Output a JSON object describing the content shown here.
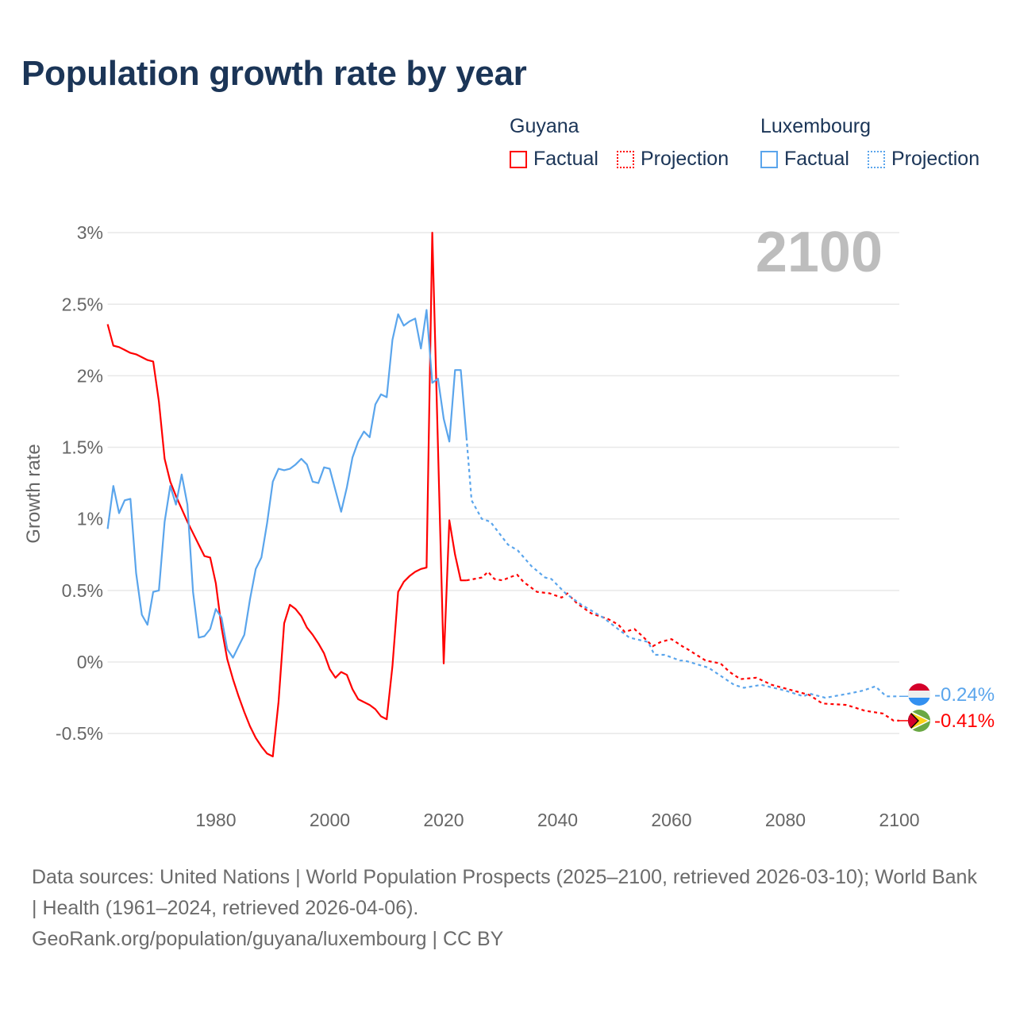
{
  "title": "Population growth rate by year",
  "legend": {
    "groups": [
      {
        "country": "Guyana",
        "color": "#ff0000",
        "factual": "Factual",
        "projection": "Projection"
      },
      {
        "country": "Luxembourg",
        "color": "#5aa5ec",
        "factual": "Factual",
        "projection": "Projection"
      }
    ]
  },
  "year_indicator": "2100",
  "end_labels": {
    "luxembourg": "-0.24%",
    "guyana": "-0.41%"
  },
  "footer": {
    "sources": "Data sources: United Nations | World Population Prospects (2025–2100, retrieved 2026-03-10); World Bank | Health (1961–2024, retrieved 2026-04-06).",
    "credit": "GeoRank.org/population/guyana/luxembourg | CC BY"
  },
  "chart_data": {
    "type": "line",
    "title": "Population growth rate by year",
    "xlabel": "",
    "ylabel": "Growth rate",
    "xlim": [
      1961,
      2100
    ],
    "ylim": [
      -0.9,
      3.0
    ],
    "grid": true,
    "yticks": [
      {
        "v": 3,
        "label": "3%"
      },
      {
        "v": 2.5,
        "label": "2.5%"
      },
      {
        "v": 2,
        "label": "2%"
      },
      {
        "v": 1.5,
        "label": "1.5%"
      },
      {
        "v": 1,
        "label": "1%"
      },
      {
        "v": 0.5,
        "label": "0.5%"
      },
      {
        "v": 0,
        "label": "0%"
      },
      {
        "v": -0.5,
        "label": "-0.5%"
      }
    ],
    "xticks": [
      {
        "v": 1980,
        "label": "1980"
      },
      {
        "v": 2000,
        "label": "2000"
      },
      {
        "v": 2020,
        "label": "2020"
      },
      {
        "v": 2040,
        "label": "2040"
      },
      {
        "v": 2060,
        "label": "2060"
      },
      {
        "v": 2080,
        "label": "2080"
      },
      {
        "v": 2100,
        "label": "2100"
      }
    ],
    "series": [
      {
        "name": "Guyana Factual",
        "country": "guyana",
        "style": "solid",
        "color": "#ff0000",
        "start_year": 1961,
        "values": [
          2.36,
          2.21,
          2.2,
          2.18,
          2.16,
          2.15,
          2.13,
          2.11,
          2.1,
          1.82,
          1.42,
          1.26,
          1.16,
          1.07,
          0.98,
          0.9,
          0.82,
          0.74,
          0.73,
          0.55,
          0.24,
          0.02,
          -0.12,
          -0.24,
          -0.35,
          -0.45,
          -0.53,
          -0.59,
          -0.64,
          -0.66,
          -0.28,
          0.27,
          0.4,
          0.37,
          0.32,
          0.24,
          0.19,
          0.13,
          0.06,
          -0.05,
          -0.11,
          -0.07,
          -0.09,
          -0.19,
          -0.26,
          -0.28,
          -0.3,
          -0.33,
          -0.38,
          -0.4,
          -0.03,
          0.49,
          0.56,
          0.6,
          0.63,
          0.65,
          0.66,
          3.0,
          1.5,
          -0.01,
          0.99,
          0.75,
          0.57,
          0.57
        ]
      },
      {
        "name": "Luxembourg Factual",
        "country": "luxembourg",
        "style": "solid",
        "color": "#5aa5ec",
        "start_year": 1961,
        "values": [
          0.93,
          1.23,
          1.04,
          1.13,
          1.14,
          0.62,
          0.33,
          0.26,
          0.49,
          0.5,
          0.98,
          1.23,
          1.1,
          1.31,
          1.1,
          0.49,
          0.17,
          0.18,
          0.23,
          0.37,
          0.31,
          0.09,
          0.03,
          0.11,
          0.19,
          0.44,
          0.65,
          0.73,
          0.97,
          1.26,
          1.35,
          1.34,
          1.35,
          1.38,
          1.42,
          1.38,
          1.26,
          1.25,
          1.36,
          1.35,
          1.2,
          1.05,
          1.22,
          1.43,
          1.54,
          1.61,
          1.57,
          1.8,
          1.87,
          1.85,
          2.25,
          2.43,
          2.35,
          2.38,
          2.4,
          2.19,
          2.46,
          1.95,
          1.98,
          1.7,
          1.54,
          2.04,
          2.04,
          1.57
        ]
      },
      {
        "name": "Guyana Projection",
        "country": "guyana",
        "style": "dotted",
        "color": "#ff0000",
        "points": [
          [
            2024,
            0.57
          ],
          [
            2026.7,
            0.59
          ],
          [
            2027.8,
            0.63
          ],
          [
            2028.9,
            0.58
          ],
          [
            2030.3,
            0.57
          ],
          [
            2031.5,
            0.59
          ],
          [
            2032.9,
            0.61
          ],
          [
            2034,
            0.56
          ],
          [
            2036.4,
            0.49
          ],
          [
            2038.6,
            0.48
          ],
          [
            2040.7,
            0.45
          ],
          [
            2041.7,
            0.48
          ],
          [
            2043.4,
            0.41
          ],
          [
            2045.9,
            0.34
          ],
          [
            2048.9,
            0.3
          ],
          [
            2050.7,
            0.26
          ],
          [
            2051.8,
            0.21
          ],
          [
            2053.5,
            0.23
          ],
          [
            2054.9,
            0.18
          ],
          [
            2056.7,
            0.11
          ],
          [
            2058.1,
            0.14
          ],
          [
            2060,
            0.16
          ],
          [
            2061.9,
            0.11
          ],
          [
            2062.8,
            0.09
          ],
          [
            2066,
            0.01
          ],
          [
            2068.6,
            -0.01
          ],
          [
            2070.2,
            -0.07
          ],
          [
            2072.1,
            -0.12
          ],
          [
            2074.9,
            -0.11
          ],
          [
            2077.6,
            -0.16
          ],
          [
            2081.4,
            -0.2
          ],
          [
            2084.2,
            -0.23
          ],
          [
            2086.5,
            -0.29
          ],
          [
            2090.7,
            -0.3
          ],
          [
            2093.9,
            -0.34
          ],
          [
            2097.1,
            -0.36
          ],
          [
            2099,
            -0.41
          ],
          [
            2100,
            -0.41
          ]
        ]
      },
      {
        "name": "Luxembourg Projection",
        "country": "luxembourg",
        "style": "dotted",
        "color": "#5aa5ec",
        "points": [
          [
            2024,
            1.57
          ],
          [
            2024.9,
            1.13
          ],
          [
            2026.7,
            1.0
          ],
          [
            2028.2,
            0.98
          ],
          [
            2031.3,
            0.82
          ],
          [
            2033,
            0.78
          ],
          [
            2035.4,
            0.67
          ],
          [
            2037.8,
            0.59
          ],
          [
            2038.9,
            0.58
          ],
          [
            2041.4,
            0.48
          ],
          [
            2044.2,
            0.4
          ],
          [
            2048,
            0.31
          ],
          [
            2052.6,
            0.17
          ],
          [
            2055.9,
            0.14
          ],
          [
            2057,
            0.05
          ],
          [
            2058.8,
            0.05
          ],
          [
            2061.5,
            0.01
          ],
          [
            2062.3,
            0.01
          ],
          [
            2066.5,
            -0.04
          ],
          [
            2071,
            -0.16
          ],
          [
            2072.7,
            -0.18
          ],
          [
            2075.8,
            -0.16
          ],
          [
            2080,
            -0.2
          ],
          [
            2083.2,
            -0.24
          ],
          [
            2084.2,
            -0.22
          ],
          [
            2087,
            -0.25
          ],
          [
            2091.2,
            -0.22
          ],
          [
            2093.6,
            -0.2
          ],
          [
            2095.8,
            -0.17
          ],
          [
            2097.7,
            -0.24
          ],
          [
            2100,
            -0.24
          ]
        ]
      }
    ]
  }
}
